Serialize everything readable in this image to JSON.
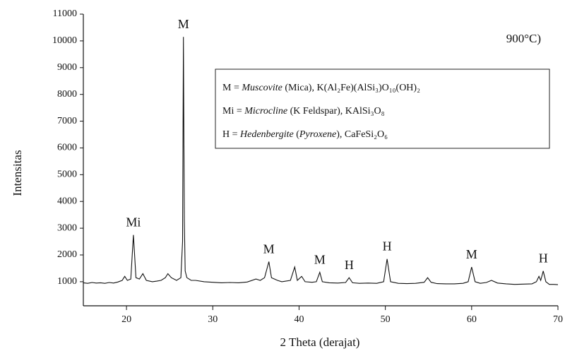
{
  "chart_data": {
    "type": "line",
    "xlabel": "2 Theta (derajat)",
    "ylabel": "Intensitas",
    "annotation": "900°C)",
    "xlim": [
      15,
      70
    ],
    "xticks": [
      20,
      30,
      40,
      50,
      60,
      70
    ],
    "ylim": [
      100,
      11000
    ],
    "yticks": [
      1000,
      2000,
      3000,
      4000,
      5000,
      6000,
      7000,
      8000,
      9000,
      10000,
      11000
    ],
    "x": [
      15,
      15.5,
      16,
      16.5,
      17,
      17.5,
      18,
      18.5,
      19,
      19.5,
      19.8,
      20.1,
      20.5,
      20.8,
      21.1,
      21.5,
      21.9,
      22.3,
      23,
      23.5,
      24,
      24.5,
      24.8,
      25.2,
      25.8,
      26.3,
      26.5,
      26.6,
      26.7,
      26.8,
      27.0,
      27.5,
      28,
      29,
      30,
      31,
      32,
      33,
      34,
      35,
      35.5,
      36,
      36.5,
      36.8,
      37.5,
      38,
      39,
      39.5,
      39.8,
      40.3,
      40.7,
      41.5,
      42,
      42.4,
      42.7,
      43.5,
      44.5,
      45.4,
      45.8,
      46.2,
      47,
      48,
      49,
      49.8,
      50.2,
      50.6,
      51.5,
      52.5,
      53.5,
      54.5,
      54.9,
      55.3,
      56,
      57,
      58,
      59,
      59.6,
      60.0,
      60.4,
      61,
      61.7,
      62.3,
      63,
      64,
      65,
      66,
      67,
      67.5,
      67.8,
      68.0,
      68.3,
      68.6,
      69,
      69.5,
      70
    ],
    "series": [
      {
        "color": "#111111",
        "values": [
          960,
          940,
          970,
          950,
          960,
          940,
          970,
          950,
          990,
          1050,
          1200,
          1050,
          1100,
          2750,
          1150,
          1100,
          1300,
          1050,
          1000,
          1020,
          1050,
          1150,
          1300,
          1150,
          1050,
          1150,
          2500,
          10150,
          3300,
          1400,
          1150,
          1050,
          1050,
          1000,
          980,
          960,
          970,
          960,
          990,
          1100,
          1050,
          1150,
          1750,
          1150,
          1050,
          1000,
          1050,
          1550,
          1050,
          1200,
          1000,
          980,
          1000,
          1350,
          1000,
          960,
          950,
          970,
          1150,
          960,
          940,
          950,
          940,
          1000,
          1850,
          1000,
          940,
          930,
          940,
          980,
          1150,
          980,
          930,
          920,
          920,
          940,
          1000,
          1550,
          1000,
          940,
          970,
          1050,
          950,
          920,
          900,
          910,
          920,
          1000,
          1200,
          1050,
          1400,
          1000,
          900,
          900,
          890
        ]
      }
    ],
    "peaks": [
      {
        "text": "Mi",
        "x": 20.8
      },
      {
        "text": "M",
        "x": 26.6
      },
      {
        "text": "M",
        "x": 36.5
      },
      {
        "text": "M",
        "x": 42.4
      },
      {
        "text": "H",
        "x": 45.8
      },
      {
        "text": "H",
        "x": 50.2
      },
      {
        "text": "M",
        "x": 60.0
      },
      {
        "text": "H",
        "x": 68.3
      }
    ],
    "legend": [
      [
        {
          "text": "M = "
        },
        {
          "text": "Muscovite",
          "italic": true
        },
        {
          "text": " (Mica), K(Al₂Fe)(AlSi₃)O₁₀(OH)₂"
        }
      ],
      [
        {
          "text": "Mi = "
        },
        {
          "text": "Microcline",
          "italic": true
        },
        {
          "text": " (K Feldspar), KAlSi₃O₈"
        }
      ],
      [
        {
          "text": "H = "
        },
        {
          "text": "Hedenbergite",
          "italic": true
        },
        {
          "text": " ("
        },
        {
          "text": "Pyroxene",
          "italic": true
        },
        {
          "text": "), CaFeSi₂O₆"
        }
      ]
    ]
  }
}
